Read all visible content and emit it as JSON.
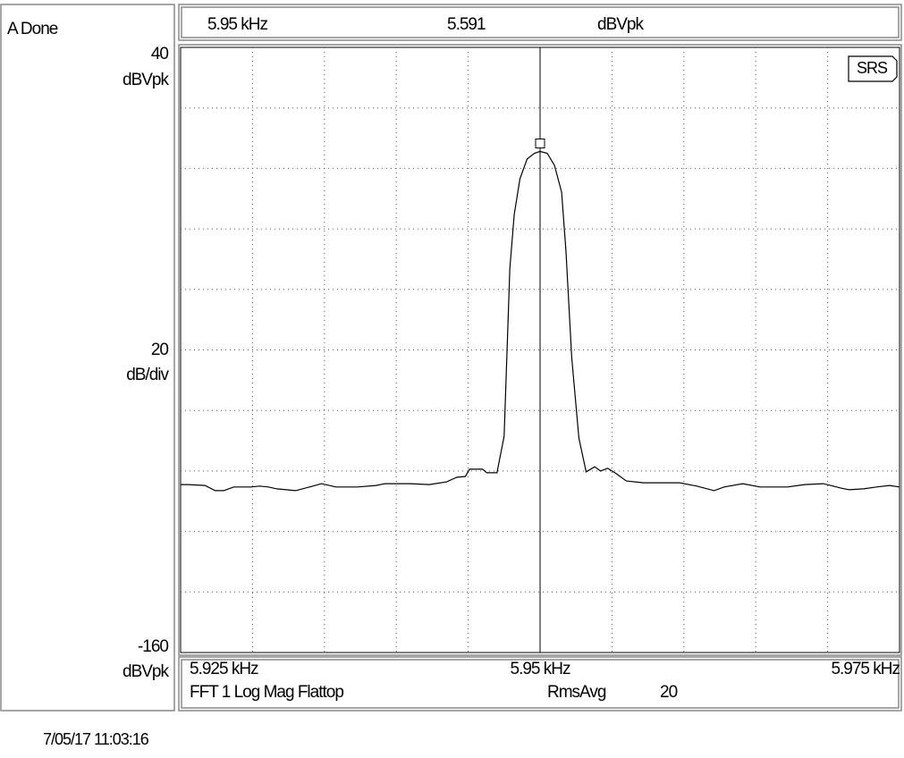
{
  "status": "A Done",
  "timestamp": "7/05/17  11:03:16",
  "logo": "SRS",
  "chart_data": {
    "type": "line",
    "measurement": "FFT 1 Log Mag Flattop",
    "averaging": "RmsAvg",
    "average_count": 20,
    "y_unit_top": "dBVpk",
    "y_unit_bottom": "dBVpk",
    "y_per_div": 20,
    "y_per_div_unit": "dB/div",
    "marker": {
      "x": {
        "value": 5.95,
        "label": "5.95 kHz"
      },
      "value": 5.591,
      "unit": "dBVpk"
    },
    "xlim": [
      5.925,
      5.975
    ],
    "xticks": [
      {
        "value": 5.925,
        "label": "5.925 kHz"
      },
      {
        "value": 5.95,
        "label": "5.95 kHz"
      },
      {
        "value": 5.975,
        "label": "5.975 kHz"
      }
    ],
    "ylim": [
      -160,
      40
    ],
    "yticks": [
      40,
      -160
    ],
    "grid": true,
    "color": "#000000",
    "x": [
      5.925,
      5.9255,
      5.9267,
      5.9274,
      5.928,
      5.9287,
      5.9299,
      5.9305,
      5.9311,
      5.9317,
      5.933,
      5.9342,
      5.9348,
      5.9358,
      5.9373,
      5.9386,
      5.9392,
      5.941,
      5.9423,
      5.9435,
      5.9442,
      5.9448,
      5.9451,
      5.946,
      5.9463,
      5.947,
      5.9475,
      5.9479,
      5.9482,
      5.9486,
      5.9491,
      5.9496,
      5.95,
      5.9505,
      5.951,
      5.9515,
      5.9518,
      5.9522,
      5.9527,
      5.9532,
      5.9538,
      5.9542,
      5.9547,
      5.9553,
      5.956,
      5.9572,
      5.9597,
      5.9609,
      5.9621,
      5.9628,
      5.9641,
      5.9653,
      5.9672,
      5.9684,
      5.9697,
      5.9709,
      5.9715,
      5.9725,
      5.9734,
      5.9743,
      5.975
    ],
    "values": [
      -104.5,
      -104.5,
      -104.8,
      -106.5,
      -106.5,
      -105.3,
      -105.3,
      -105.0,
      -105.3,
      -105.9,
      -106.5,
      -105.0,
      -104.2,
      -105.3,
      -105.3,
      -104.8,
      -104.2,
      -104.2,
      -104.5,
      -103.6,
      -102.1,
      -101.8,
      -99.4,
      -99.4,
      -100.6,
      -100.6,
      -88.5,
      -33.0,
      -15.2,
      -3.4,
      3.1,
      5.0,
      5.6,
      5.0,
      1.0,
      -7.9,
      -27.1,
      -62.5,
      -89.1,
      -100.3,
      -98.6,
      -100.0,
      -99.1,
      -100.9,
      -103.3,
      -103.9,
      -103.9,
      -105.0,
      -106.5,
      -105.3,
      -104.2,
      -105.3,
      -105.3,
      -104.5,
      -104.2,
      -105.6,
      -106.2,
      -105.9,
      -105.3,
      -104.8,
      -105.3
    ]
  }
}
